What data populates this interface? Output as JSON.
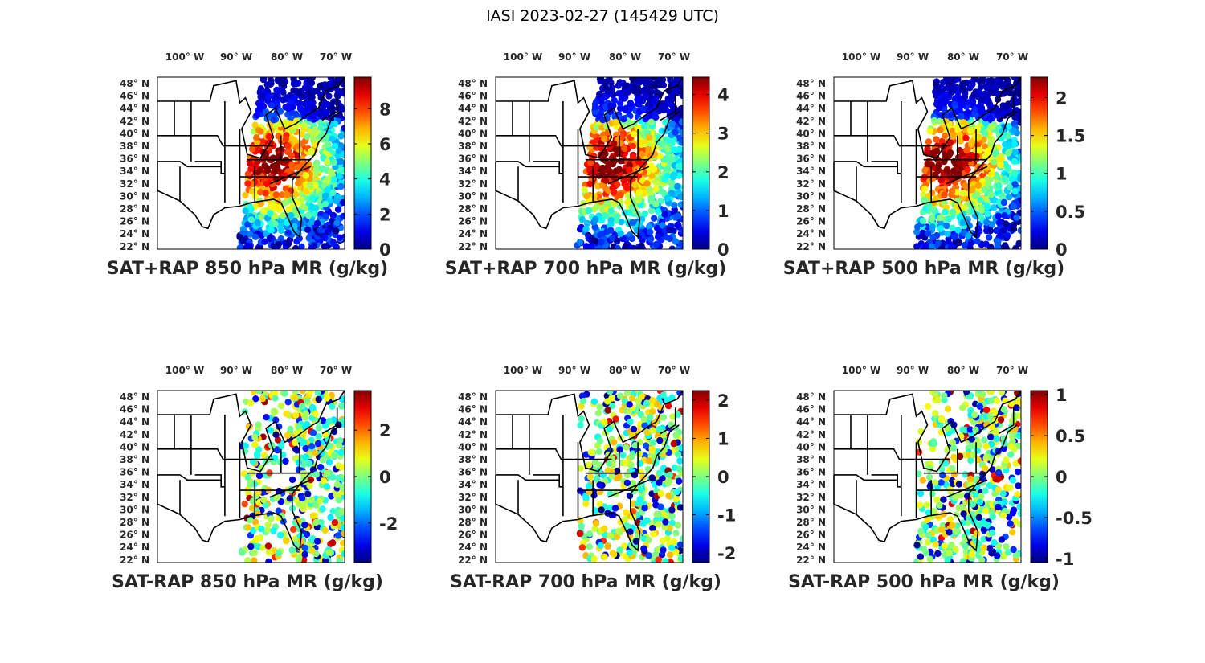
{
  "figure": {
    "title": "IASI 2023-02-27 (145429 UTC)"
  },
  "lon_labels": [
    {
      "deg": "100",
      "hemi": "W"
    },
    {
      "deg": "90",
      "hemi": "W"
    },
    {
      "deg": "80",
      "hemi": "W"
    },
    {
      "deg": "70",
      "hemi": "W"
    }
  ],
  "lat_labels": [
    {
      "deg": "48",
      "hemi": "N"
    },
    {
      "deg": "46",
      "hemi": "N"
    },
    {
      "deg": "44",
      "hemi": "N"
    },
    {
      "deg": "42",
      "hemi": "N"
    },
    {
      "deg": "40",
      "hemi": "N"
    },
    {
      "deg": "38",
      "hemi": "N"
    },
    {
      "deg": "36",
      "hemi": "N"
    },
    {
      "deg": "34",
      "hemi": "N"
    },
    {
      "deg": "32",
      "hemi": "N"
    },
    {
      "deg": "30",
      "hemi": "N"
    },
    {
      "deg": "28",
      "hemi": "N"
    },
    {
      "deg": "26",
      "hemi": "N"
    },
    {
      "deg": "24",
      "hemi": "N"
    },
    {
      "deg": "22",
      "hemi": "N"
    }
  ],
  "colormap": "jet",
  "panels": [
    {
      "caption": "SAT+RAP 850 hPa MR (g/kg)",
      "kind": "total",
      "clim": [
        0,
        9.8
      ],
      "colorbar_ticks": [
        "0",
        "2",
        "4",
        "6",
        "8"
      ],
      "tick_values": [
        0,
        2,
        4,
        6,
        8
      ]
    },
    {
      "caption": "SAT+RAP 700 hPa MR (g/kg)",
      "kind": "total",
      "clim": [
        0,
        4.45
      ],
      "colorbar_ticks": [
        "0",
        "1",
        "2",
        "3",
        "4"
      ],
      "tick_values": [
        0,
        1,
        2,
        3,
        4
      ]
    },
    {
      "caption": "SAT+RAP 500 hPa MR (g/kg)",
      "kind": "total",
      "clim": [
        0,
        2.27
      ],
      "colorbar_ticks": [
        "0",
        "0.5",
        "1",
        "1.5",
        "2"
      ],
      "tick_values": [
        0,
        0.5,
        1,
        1.5,
        2
      ]
    },
    {
      "caption": "SAT-RAP 850 hPa MR (g/kg)",
      "kind": "diff",
      "clim": [
        -3.7,
        3.7
      ],
      "colorbar_ticks": [
        "-2",
        "0",
        "2"
      ],
      "tick_values": [
        -2,
        0,
        2
      ]
    },
    {
      "caption": "SAT-RAP 700 hPa MR (g/kg)",
      "kind": "diff",
      "clim": [
        -2.25,
        2.25
      ],
      "colorbar_ticks": [
        "-2",
        "-1",
        "0",
        "1",
        "2"
      ],
      "tick_values": [
        -2,
        -1,
        0,
        1,
        2
      ]
    },
    {
      "caption": "SAT-RAP 500 hPa MR (g/kg)",
      "kind": "diff",
      "clim": [
        -1.05,
        1.05
      ],
      "colorbar_ticks": [
        "-1",
        "-0.5",
        "0",
        "0.5",
        "1"
      ],
      "tick_values": [
        -1,
        -0.5,
        0,
        0.5,
        1
      ]
    }
  ]
}
